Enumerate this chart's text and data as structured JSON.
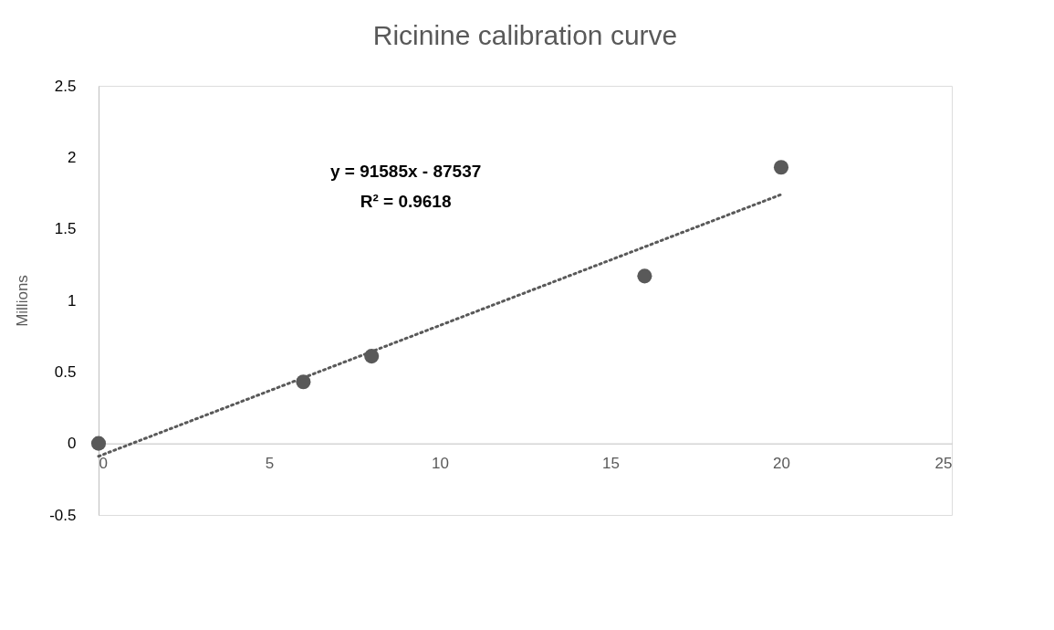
{
  "chart_data": {
    "type": "scatter",
    "title": "Ricinine calibration curve",
    "ylabel": "Millions",
    "x": [
      0,
      6,
      8,
      16,
      20
    ],
    "series": [
      {
        "color": "#595959",
        "marker": "circle",
        "values": [
          0,
          0.43,
          0.61,
          1.17,
          1.93
        ]
      },
      {
        "type": "line",
        "color": "#595959",
        "line_style": "dotted",
        "marker": "none",
        "x": [
          0,
          20
        ],
        "values": [
          -0.09,
          1.74
        ]
      }
    ],
    "annotations": [
      "y = 91585x - 87537",
      "R² = 0.9618"
    ],
    "xlim": [
      0,
      25
    ],
    "xticks": [
      0,
      5,
      10,
      15,
      20,
      25
    ],
    "ylim": [
      -0.5,
      2.5
    ],
    "yticks": [
      -0.5,
      0,
      0.5,
      1,
      1.5,
      2,
      2.5
    ],
    "grid": false
  }
}
